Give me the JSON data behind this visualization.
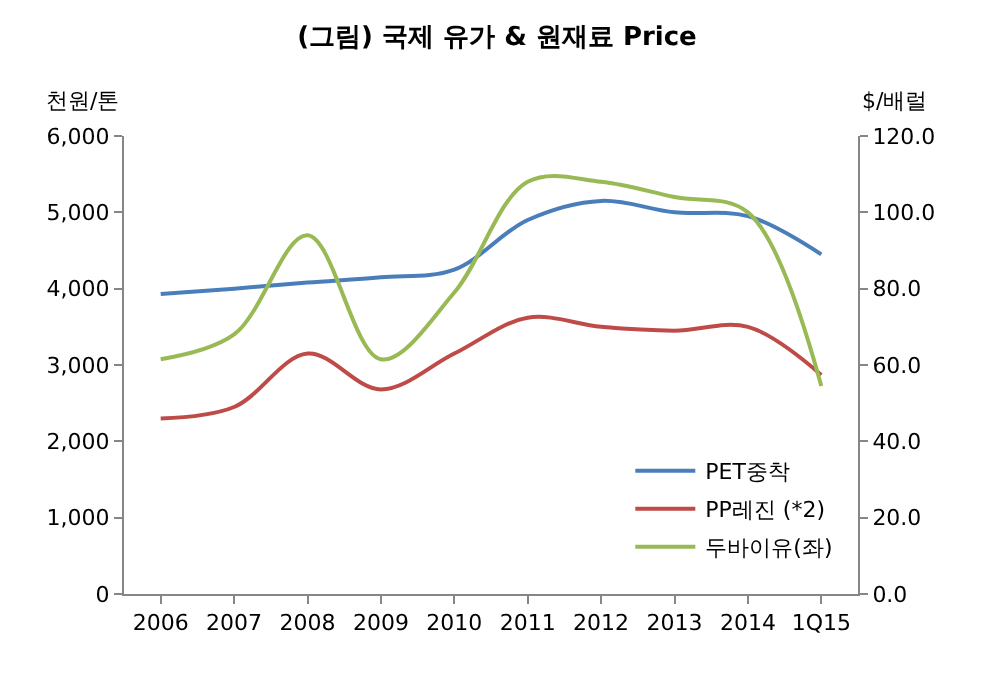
{
  "chart_data": {
    "type": "line",
    "title": "(그림) 국제 유가 & 원재료 Price",
    "ylabel": "천원/톤",
    "y2label": "$/배럴",
    "categories": [
      "2006",
      "2007",
      "2008",
      "2009",
      "2010",
      "2011",
      "2012",
      "2013",
      "2014",
      "1Q15"
    ],
    "series": [
      {
        "name": "PET중착",
        "color": "#4a7ebb",
        "values": [
          3930,
          4000,
          4080,
          4150,
          4250,
          4900,
          5150,
          5000,
          4950,
          4450
        ]
      },
      {
        "name": "PP레진 (*2)",
        "color": "#be4b48",
        "values": [
          2300,
          2450,
          3150,
          2680,
          3150,
          3620,
          3500,
          3450,
          3500,
          2870
        ]
      },
      {
        "name": "두바이유(좌)",
        "color": "#98b954",
        "axis": "y2",
        "values": [
          61.5,
          68,
          94,
          61.5,
          79,
          108,
          108,
          104,
          100,
          54.5
        ]
      }
    ],
    "ylim": [
      0,
      6000
    ],
    "yticks": [
      {
        "value": 0,
        "label": "0"
      },
      {
        "value": 1000,
        "label": "1,000"
      },
      {
        "value": 2000,
        "label": "2,000"
      },
      {
        "value": 3000,
        "label": "3,000"
      },
      {
        "value": 4000,
        "label": "4,000"
      },
      {
        "value": 5000,
        "label": "5,000"
      },
      {
        "value": 6000,
        "label": "6,000"
      }
    ],
    "y2lim": [
      0,
      120
    ],
    "y2ticks": [
      {
        "value": 0,
        "label": "0.0"
      },
      {
        "value": 20,
        "label": "20.0"
      },
      {
        "value": 40,
        "label": "40.0"
      },
      {
        "value": 60,
        "label": "60.0"
      },
      {
        "value": 80,
        "label": "80.0"
      },
      {
        "value": 100,
        "label": "100.0"
      },
      {
        "value": 120,
        "label": "120.0"
      }
    ],
    "legend": "bottom right",
    "marker": "none",
    "line_style": "solid"
  }
}
